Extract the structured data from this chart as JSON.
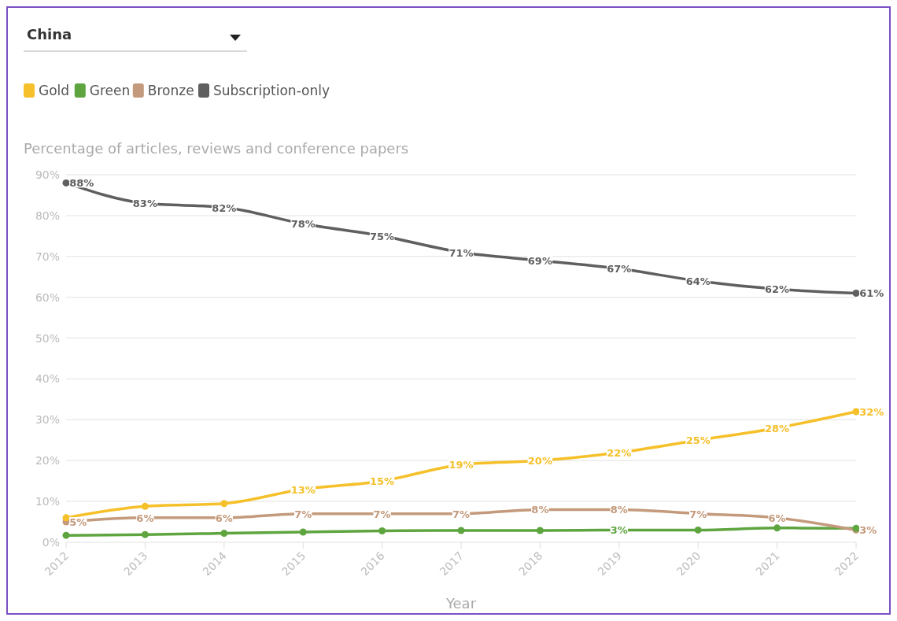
{
  "chart_data": {
    "type": "line",
    "title": "China",
    "ylabel": "Percentage of articles, reviews and conference papers",
    "xlabel": "Year",
    "categories": [
      "2012",
      "2013",
      "2014",
      "2015",
      "2016",
      "2017",
      "2018",
      "2019",
      "2020",
      "2021",
      "2022"
    ],
    "series": [
      {
        "name": "Gold",
        "color": "#f5c02a",
        "values": [
          6,
          8.8,
          9.5,
          13,
          15,
          19,
          20,
          22,
          25,
          28,
          32
        ],
        "value_labels": [
          null,
          null,
          null,
          "13%",
          "15%",
          "19%",
          "20%",
          "22%",
          "25%",
          "28%",
          "32%"
        ]
      },
      {
        "name": "Green",
        "color": "#5ea540",
        "values": [
          1.7,
          1.9,
          2.2,
          2.5,
          2.8,
          2.9,
          2.9,
          3,
          3,
          3.5,
          3.4
        ],
        "value_labels": [
          null,
          null,
          null,
          null,
          null,
          null,
          null,
          "3%",
          null,
          null,
          null
        ]
      },
      {
        "name": "Bronze",
        "color": "#c49a7c",
        "values": [
          5,
          6,
          6,
          7,
          7,
          7,
          8,
          8,
          7,
          6,
          3
        ],
        "value_labels": [
          "5%",
          "6%",
          "6%",
          "7%",
          "7%",
          "7%",
          "8%",
          "8%",
          "7%",
          "6%",
          "3%"
        ]
      },
      {
        "name": "Subscription-only",
        "color": "#5f5f5f",
        "values": [
          88,
          83,
          82,
          78,
          75,
          71,
          69,
          67,
          64,
          62,
          61
        ],
        "value_labels": [
          "88%",
          "83%",
          "82%",
          "78%",
          "75%",
          "71%",
          "69%",
          "67%",
          "64%",
          "62%",
          "61%"
        ]
      }
    ],
    "ylim": [
      0,
      90
    ],
    "yticks": [
      {
        "value": 0,
        "label": "0%"
      },
      {
        "value": 10,
        "label": "10%"
      },
      {
        "value": 20,
        "label": "20%"
      },
      {
        "value": 30,
        "label": "30%"
      },
      {
        "value": 40,
        "label": "40%"
      },
      {
        "value": 50,
        "label": "50%"
      },
      {
        "value": 60,
        "label": "60%"
      },
      {
        "value": 70,
        "label": "70%"
      },
      {
        "value": 80,
        "label": "80%"
      },
      {
        "value": 90,
        "label": "90%"
      }
    ],
    "grid": "y",
    "legend": "top left",
    "marker": "circle",
    "line_style": "solid"
  }
}
